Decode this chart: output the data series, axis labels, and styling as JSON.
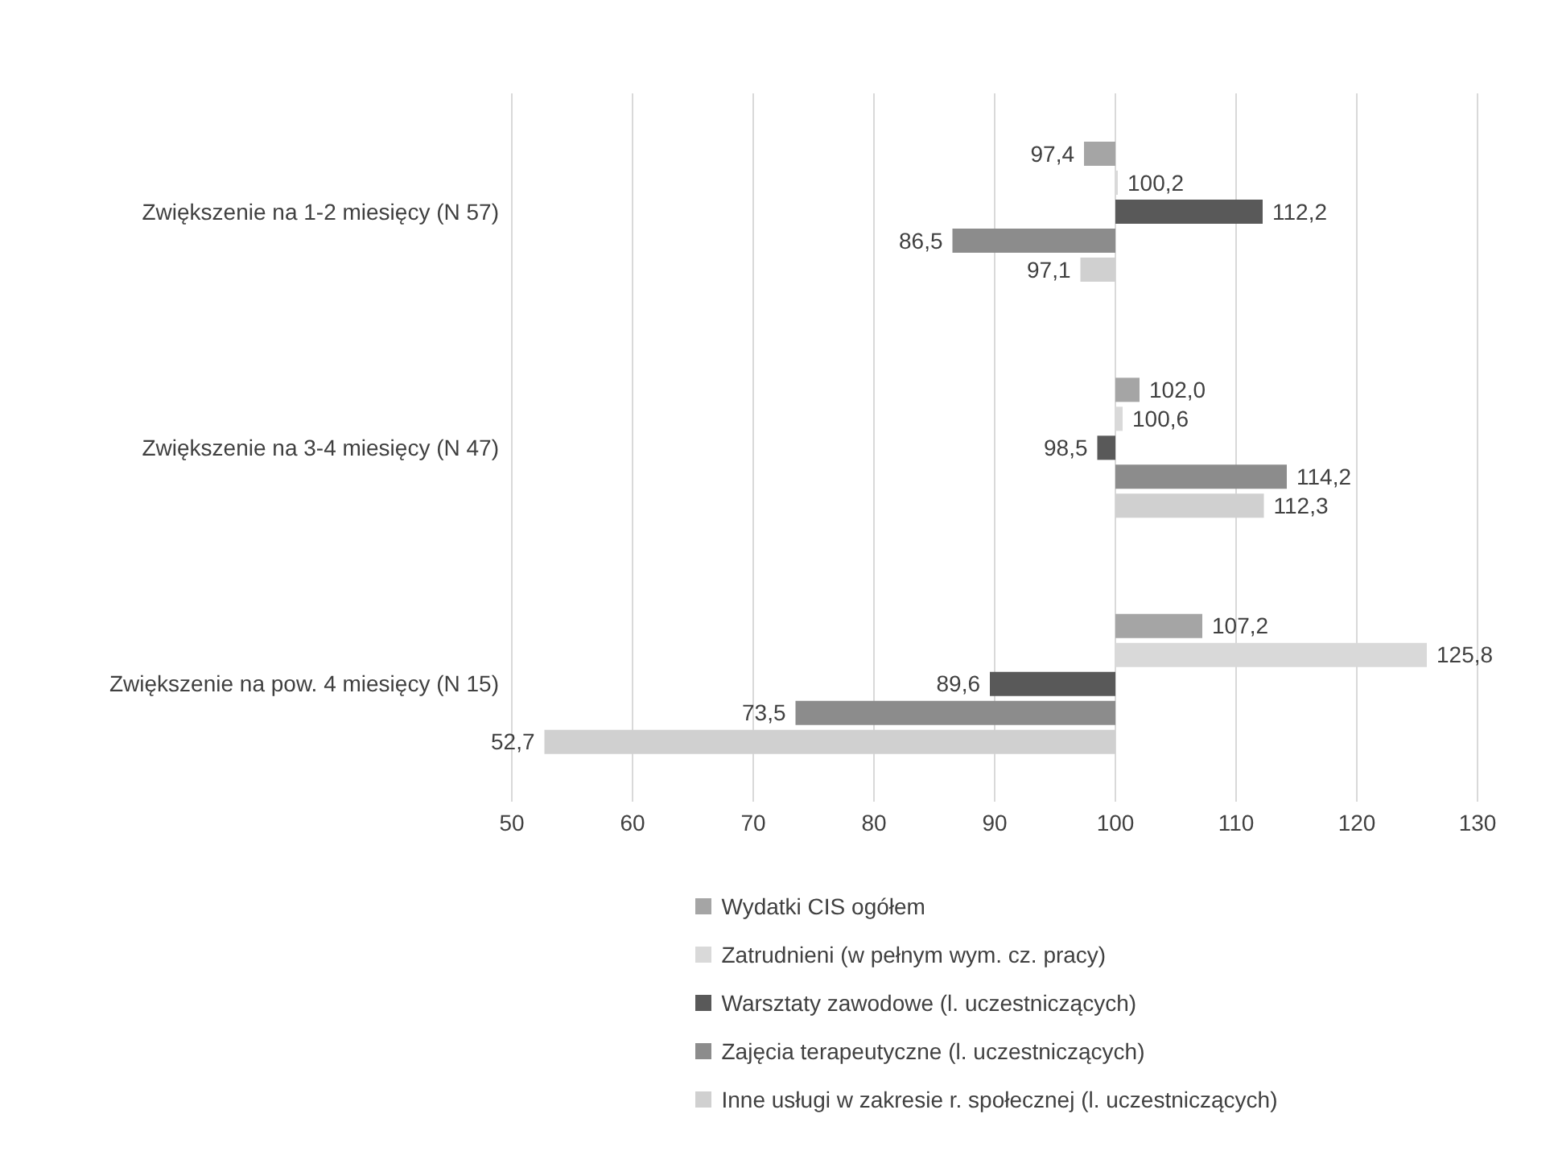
{
  "chart_data": {
    "type": "bar",
    "orientation": "horizontal",
    "categories": [
      "Zwiększenie na 1-2 miesięcy (N 57)",
      "Zwiększenie na 3-4 miesięcy (N 47)",
      "Zwiększenie na pow. 4 miesięcy (N 15)"
    ],
    "series": [
      {
        "name": "Wydatki CIS ogółem",
        "color": "#a5a5a5",
        "base": [
          100,
          100,
          100
        ],
        "values": [
          -2.6,
          2.0,
          7.2
        ],
        "value_labels": [
          "97,4",
          "102,0",
          "107,2"
        ]
      },
      {
        "name": "Zatrudnieni (w pełnym wym. cz. pracy)",
        "color": "#d9d9d9",
        "base": [
          100,
          100,
          100
        ],
        "values": [
          0.2,
          0.6,
          25.8
        ],
        "value_labels": [
          "100,2",
          "100,6",
          "125,8"
        ]
      },
      {
        "name": "Warsztaty zawodowe  (l. uczestniczących)",
        "color": "#595959",
        "base": [
          100,
          100,
          100
        ],
        "values": [
          12.2,
          -1.5,
          -10.4
        ],
        "value_labels": [
          "112,2",
          "98,5",
          "89,6"
        ]
      },
      {
        "name": "Zajęcia terapeutyczne (l. uczestniczących)",
        "color": "#8c8c8c",
        "base": [
          100,
          100,
          100
        ],
        "values": [
          -13.5,
          14.2,
          -26.5
        ],
        "value_labels": [
          "86,5",
          "114,2",
          "73,5"
        ]
      },
      {
        "name": "Inne usługi w zakresie r. społecznej (l. uczestniczących)",
        "color": "#d0d0d0",
        "base": [
          100,
          100,
          100
        ],
        "values": [
          -2.9,
          12.3,
          -47.3
        ],
        "value_labels": [
          "97,1",
          "112,3",
          "52,7"
        ]
      }
    ],
    "xlim": [
      50,
      130
    ],
    "xticks": [
      50,
      60,
      70,
      80,
      90,
      100,
      110,
      120,
      130
    ],
    "grid": "x",
    "legend": "bottom"
  }
}
